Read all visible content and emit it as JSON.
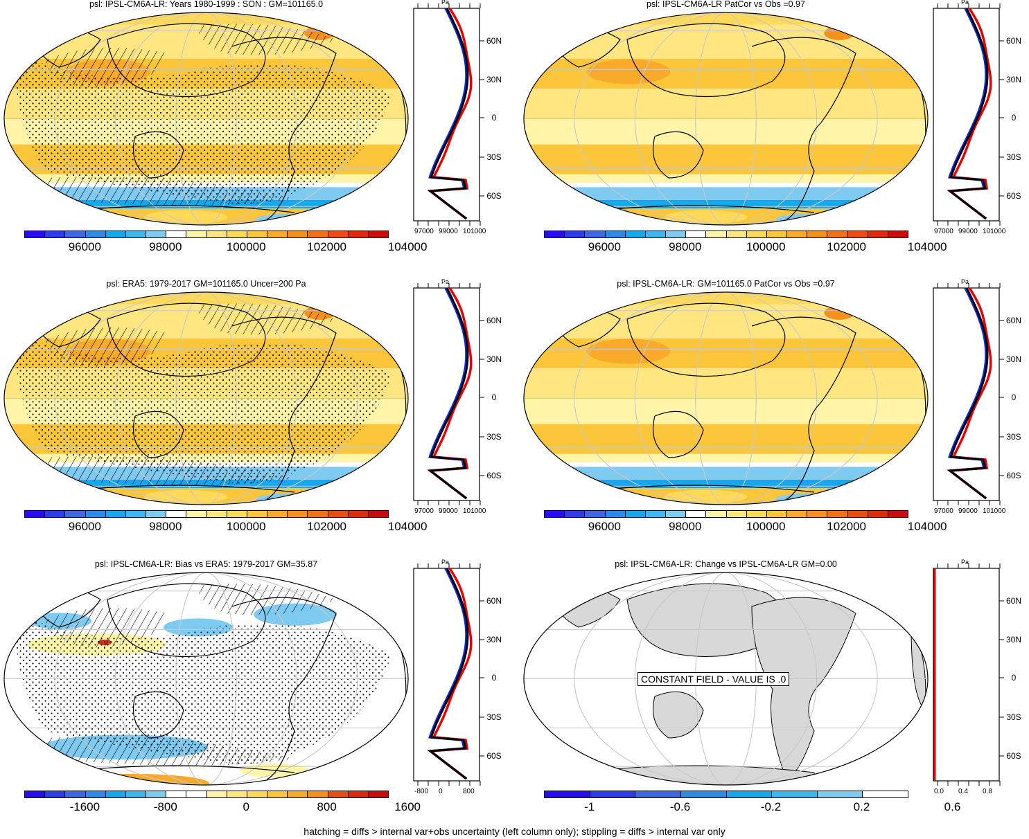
{
  "panels": [
    {
      "title": "psl: IPSL-CM6A-LR: Years 1980-1999 : SON : GM=101165.0",
      "kind": "abs",
      "hatch": true,
      "stipple": true,
      "cbar_labels": [
        "96000",
        "98000",
        "100000",
        "102000",
        "104000"
      ],
      "zonal_x_labels": [
        "97000",
        "99000",
        "101000"
      ],
      "zonal_unit": "Pa"
    },
    {
      "title": "psl: IPSL-CM6A-LR PatCor vs Obs =0.97",
      "kind": "abs",
      "hatch": false,
      "stipple": false,
      "cbar_labels": [
        "96000",
        "98000",
        "100000",
        "102000",
        "104000"
      ],
      "zonal_x_labels": [
        "97000",
        "99000",
        "101000"
      ],
      "zonal_unit": "Pa"
    },
    {
      "title": "psl: ERA5: 1979-2017 GM=101165.0 Uncer=200 Pa",
      "kind": "abs",
      "hatch": true,
      "stipple": true,
      "cbar_labels": [
        "96000",
        "98000",
        "100000",
        "102000",
        "104000"
      ],
      "zonal_x_labels": [
        "97000",
        "99000",
        "101000"
      ],
      "zonal_unit": "Pa"
    },
    {
      "title": "psl: IPSL-CM6A-LR: GM=101165.0 PatCor vs Obs =0.97",
      "kind": "abs",
      "hatch": false,
      "stipple": false,
      "cbar_labels": [
        "96000",
        "98000",
        "100000",
        "102000",
        "104000"
      ],
      "zonal_x_labels": [
        "97000",
        "99000",
        "101000"
      ],
      "zonal_unit": "Pa"
    },
    {
      "title": "psl: IPSL-CM6A-LR: Bias vs ERA5: 1979-2017  GM=35.87",
      "kind": "bias",
      "hatch": true,
      "stipple": true,
      "cbar_labels": [
        "-1600",
        "-800",
        "0",
        "800",
        "1600"
      ],
      "zonal_x_labels": [
        "-800",
        "0",
        "800"
      ],
      "zonal_unit": "Pa"
    },
    {
      "title": "psl: IPSL-CM6A-LR: Change vs IPSL-CM6A-LR GM=0.00",
      "kind": "change",
      "hatch": false,
      "stipple": false,
      "constant_label": "CONSTANT FIELD - VALUE IS .0",
      "cbar_labels": [
        "-1",
        "-0.6",
        "-0.2",
        "0.2",
        "0.6"
      ],
      "zonal_x_labels": [
        "0.0",
        "0.4",
        "0.8"
      ],
      "zonal_unit": "Pa"
    }
  ],
  "lat_labels": [
    "60N",
    "30N",
    "0",
    "30S",
    "60S"
  ],
  "palettes": {
    "abs": [
      "#2a0cf0",
      "#2d3ee8",
      "#3e68e0",
      "#2e8ae6",
      "#14a8ec",
      "#3cb8ee",
      "#7ecaf0",
      "#ffffff",
      "#fff4a8",
      "#ffe680",
      "#ffd95a",
      "#fcc63a",
      "#f9aa2a",
      "#f5901e",
      "#f07218",
      "#e84e12",
      "#dc2a0e",
      "#c80c0c"
    ],
    "bias": [
      "#2a0cf0",
      "#2d3ee8",
      "#3e68e0",
      "#2e8ae6",
      "#14a8ec",
      "#3cb8ee",
      "#7ecaf0",
      "#ffffff",
      "#ffffff",
      "#fff4a8",
      "#ffe680",
      "#ffd95a",
      "#fcc63a",
      "#f9aa2a",
      "#f5901e",
      "#e84e12",
      "#dc2a0e",
      "#c80c0c"
    ],
    "change": [
      "#2a0cf0",
      "#2d3ee8",
      "#3e68e0",
      "#2e8ae6",
      "#14a8ec",
      "#3cb8ee",
      "#7ecaf0",
      "#ffffff"
    ]
  },
  "line_colors": {
    "model": "#e60000",
    "obs": "#0a28e0",
    "other": "#000000"
  },
  "footnote": "hatching = diffs > internal var+obs uncertainty (left column only); stippling = diffs > internal var only"
}
